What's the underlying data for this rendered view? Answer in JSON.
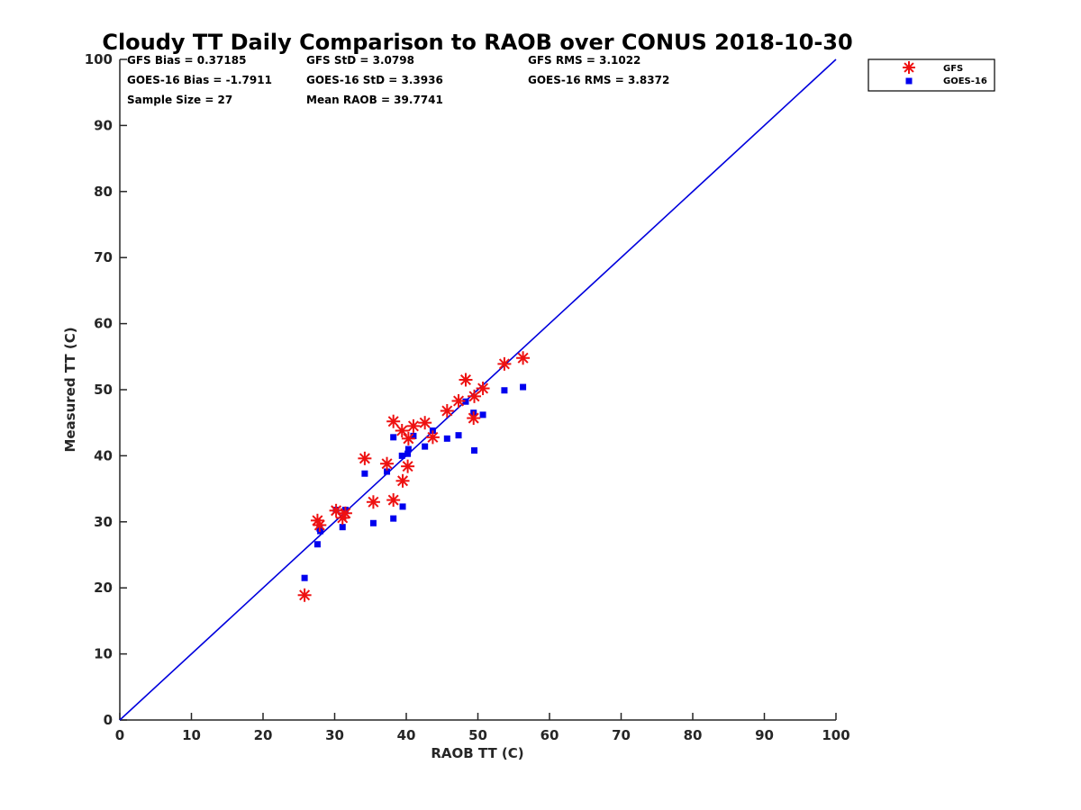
{
  "chart_data": {
    "type": "scatter",
    "title": "Cloudy TT Daily Comparison to RAOB over CONUS 2018-10-30",
    "xlabel": "RAOB TT (C)",
    "ylabel": "Measured TT (C)",
    "xlim": [
      0,
      100
    ],
    "ylim": [
      0,
      100
    ],
    "xticks": [
      0,
      10,
      20,
      30,
      40,
      50,
      60,
      70,
      80,
      90,
      100
    ],
    "yticks": [
      0,
      10,
      20,
      30,
      40,
      50,
      60,
      70,
      80,
      90,
      100
    ],
    "grid": false,
    "legend_position": "top-right (outside plot)",
    "reference_line": {
      "x": [
        0,
        100
      ],
      "y": [
        0,
        100
      ],
      "color": "#0000dd"
    },
    "stats": [
      "GFS Bias = 0.37185",
      "GOES-16 Bias = -1.7911",
      "Sample Size = 27",
      "GFS StD = 3.0798",
      "GOES-16 StD = 3.3936",
      "Mean RAOB = 39.7741",
      "GFS RMS = 3.1022",
      "GOES-16 RMS = 3.8372"
    ],
    "series": [
      {
        "name": "GFS",
        "marker": "asterisk",
        "color": "#ee1111",
        "x": [
          25.8,
          27.6,
          27.9,
          30.2,
          31.1,
          31.5,
          34.2,
          35.4,
          37.3,
          38.2,
          38.2,
          39.4,
          39.5,
          40.2,
          40.3,
          41.0,
          42.6,
          43.7,
          45.7,
          47.3,
          48.3,
          49.4,
          49.5,
          50.7,
          53.7,
          56.3
        ],
        "y": [
          18.9,
          30.2,
          29.5,
          31.7,
          30.6,
          31.3,
          39.6,
          33.0,
          38.8,
          33.3,
          45.2,
          43.8,
          36.2,
          38.4,
          42.6,
          44.5,
          45.0,
          42.8,
          46.8,
          48.3,
          51.5,
          45.7,
          49.0,
          50.2,
          53.9,
          54.8
        ]
      },
      {
        "name": "GOES-16",
        "marker": "square",
        "color": "#0000ee",
        "x": [
          25.8,
          27.6,
          27.9,
          28.0,
          30.2,
          31.1,
          31.5,
          34.2,
          35.4,
          37.3,
          38.2,
          38.2,
          39.4,
          39.5,
          40.2,
          40.3,
          41.0,
          42.6,
          43.7,
          45.7,
          47.3,
          48.3,
          49.4,
          49.5,
          50.7,
          53.7,
          56.3
        ],
        "y": [
          21.5,
          26.6,
          29.0,
          28.6,
          31.8,
          29.2,
          31.8,
          37.3,
          29.8,
          37.6,
          30.5,
          42.8,
          40.0,
          32.3,
          40.3,
          41.0,
          43.0,
          41.4,
          43.8,
          42.6,
          43.1,
          48.2,
          46.5,
          40.8,
          46.2,
          49.9,
          50.4
        ]
      }
    ]
  }
}
